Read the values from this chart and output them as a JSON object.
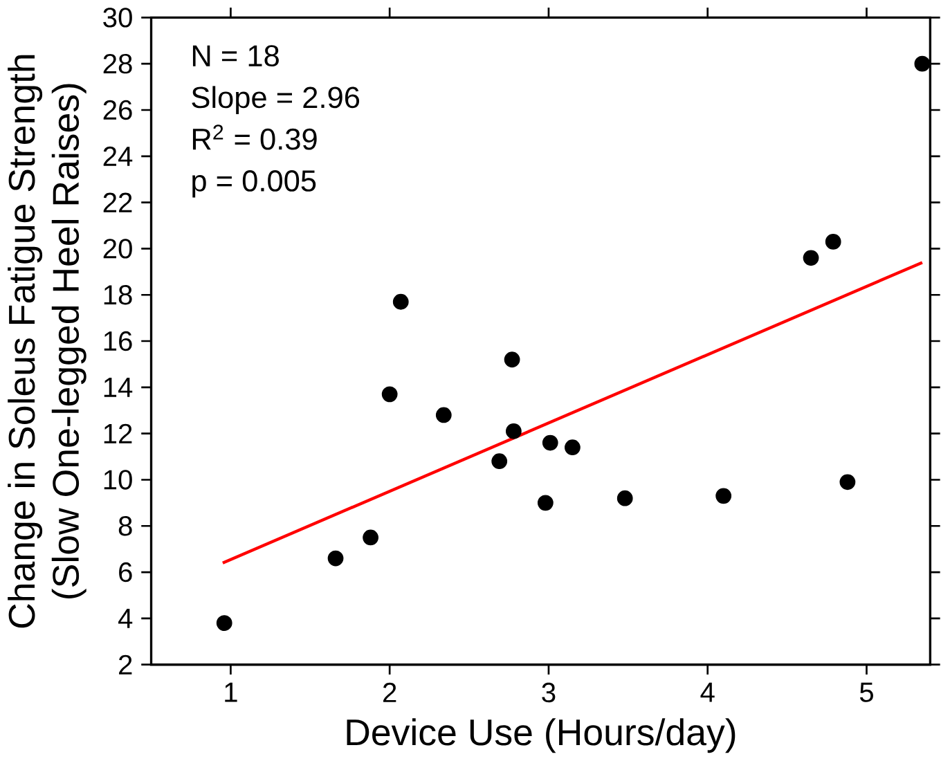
{
  "chart_data": {
    "type": "scatter",
    "xlabel": "Device Use (Hours/day)",
    "ylabel": "Change in Soleus Fatigue Strength\n(Slow One-legged Heel Raises)",
    "xlim": [
      0.5,
      5.4
    ],
    "xticks": [
      1,
      2,
      3,
      4,
      5
    ],
    "ylim": [
      2,
      30
    ],
    "yticks": [
      2,
      4,
      6,
      8,
      10,
      12,
      14,
      16,
      18,
      20,
      22,
      24,
      26,
      28,
      30
    ],
    "grid": false,
    "annotations": [
      "N = 18",
      "Slope = 2.96",
      "R$^{2}$ = 0.39",
      "p = 0.005"
    ],
    "series": [
      {
        "marker": "circle",
        "color": "#000000",
        "x": [
          0.96,
          1.66,
          1.88,
          2.0,
          2.07,
          2.34,
          2.69,
          2.77,
          2.78,
          2.98,
          3.01,
          3.15,
          3.48,
          4.1,
          4.65,
          4.79,
          4.88,
          5.35
        ],
        "values": [
          3.8,
          6.6,
          7.5,
          13.7,
          17.7,
          12.8,
          10.8,
          15.2,
          12.1,
          9.0,
          11.6,
          11.4,
          9.2,
          9.3,
          19.6,
          20.3,
          9.9,
          28.0
        ]
      },
      {
        "type": "line",
        "marker": "none",
        "color": "#ff0000",
        "x": [
          0.95,
          5.35
        ],
        "values": [
          6.4,
          19.4
        ]
      }
    ]
  }
}
